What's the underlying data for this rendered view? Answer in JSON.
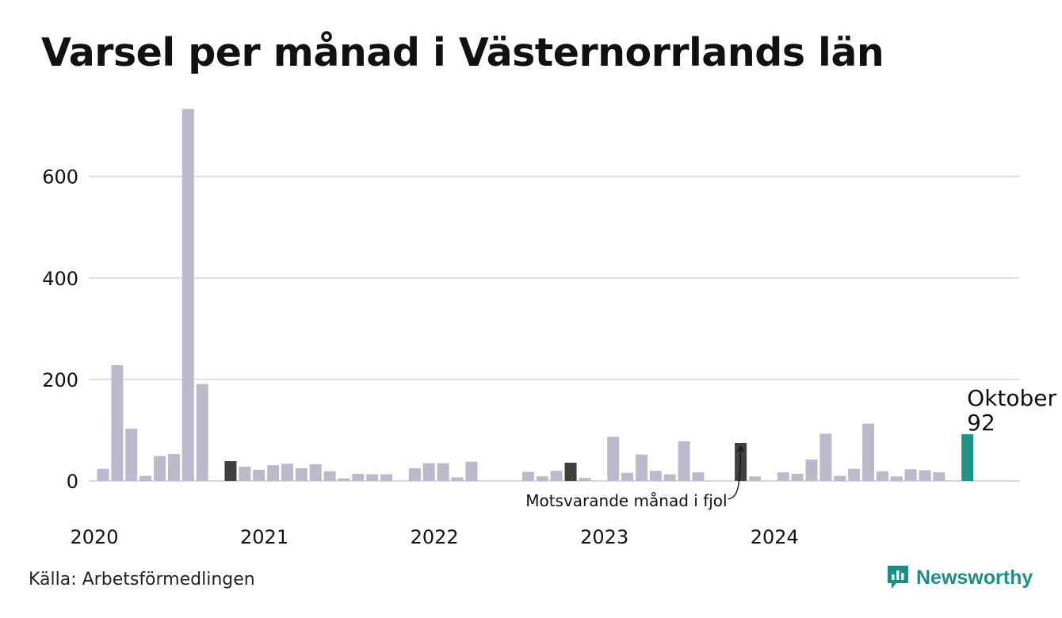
{
  "title": "Varsel per månad i Västernorrlands län",
  "source": "Källa: Arbetsförmedlingen",
  "brand": "Newsworthy",
  "colors": {
    "bar": "#bcbaca",
    "bar_same_month": "#404040",
    "bar_current": "#1a9688",
    "grid": "#dedede",
    "brand": "#1a8f86"
  },
  "chart_data": {
    "type": "bar",
    "x": [
      "2020-01",
      "2020-02",
      "2020-03",
      "2020-04",
      "2020-05",
      "2020-06",
      "2020-07",
      "2020-08",
      "2020-09",
      "2020-10",
      "2020-11",
      "2020-12",
      "2021-01",
      "2021-02",
      "2021-03",
      "2021-04",
      "2021-05",
      "2021-06",
      "2021-07",
      "2021-08",
      "2021-09",
      "2021-10",
      "2021-11",
      "2021-12",
      "2022-01",
      "2022-02",
      "2022-03",
      "2022-04",
      "2022-05",
      "2022-06",
      "2022-07",
      "2022-08",
      "2022-09",
      "2022-10",
      "2022-11",
      "2022-12",
      "2023-01",
      "2023-02",
      "2023-03",
      "2023-04",
      "2023-05",
      "2023-06",
      "2023-07",
      "2023-08",
      "2023-09",
      "2023-10",
      "2023-11",
      "2023-12",
      "2024-01",
      "2024-02",
      "2024-03",
      "2024-04",
      "2024-05",
      "2024-06",
      "2024-07",
      "2024-08",
      "2024-09",
      "2024-10"
    ],
    "values": [
      24,
      228,
      103,
      10,
      49,
      53,
      733,
      191,
      0,
      39,
      28,
      22,
      31,
      34,
      25,
      33,
      19,
      5,
      14,
      13,
      13,
      0,
      25,
      35,
      35,
      7,
      38,
      0,
      0,
      0,
      18,
      9,
      20,
      36,
      6,
      0,
      87,
      16,
      52,
      20,
      13,
      78,
      17,
      0,
      0,
      75,
      9,
      0,
      17,
      14,
      42,
      93,
      10,
      24,
      113,
      19,
      9,
      23
    ],
    "extra_values": [
      21,
      17,
      0,
      92
    ],
    "highlight_same_month_last_years": [
      "2020-10",
      "2021-10",
      "2022-10",
      "2023-10"
    ],
    "current": {
      "label": "Oktober",
      "value": 92
    },
    "annotation": "Motsvarande månad i fjol",
    "year_ticks": [
      "2020",
      "2021",
      "2022",
      "2023",
      "2024"
    ],
    "y_ticks": [
      0,
      200,
      400,
      600
    ],
    "ylim": [
      0,
      760
    ],
    "grid": true
  }
}
